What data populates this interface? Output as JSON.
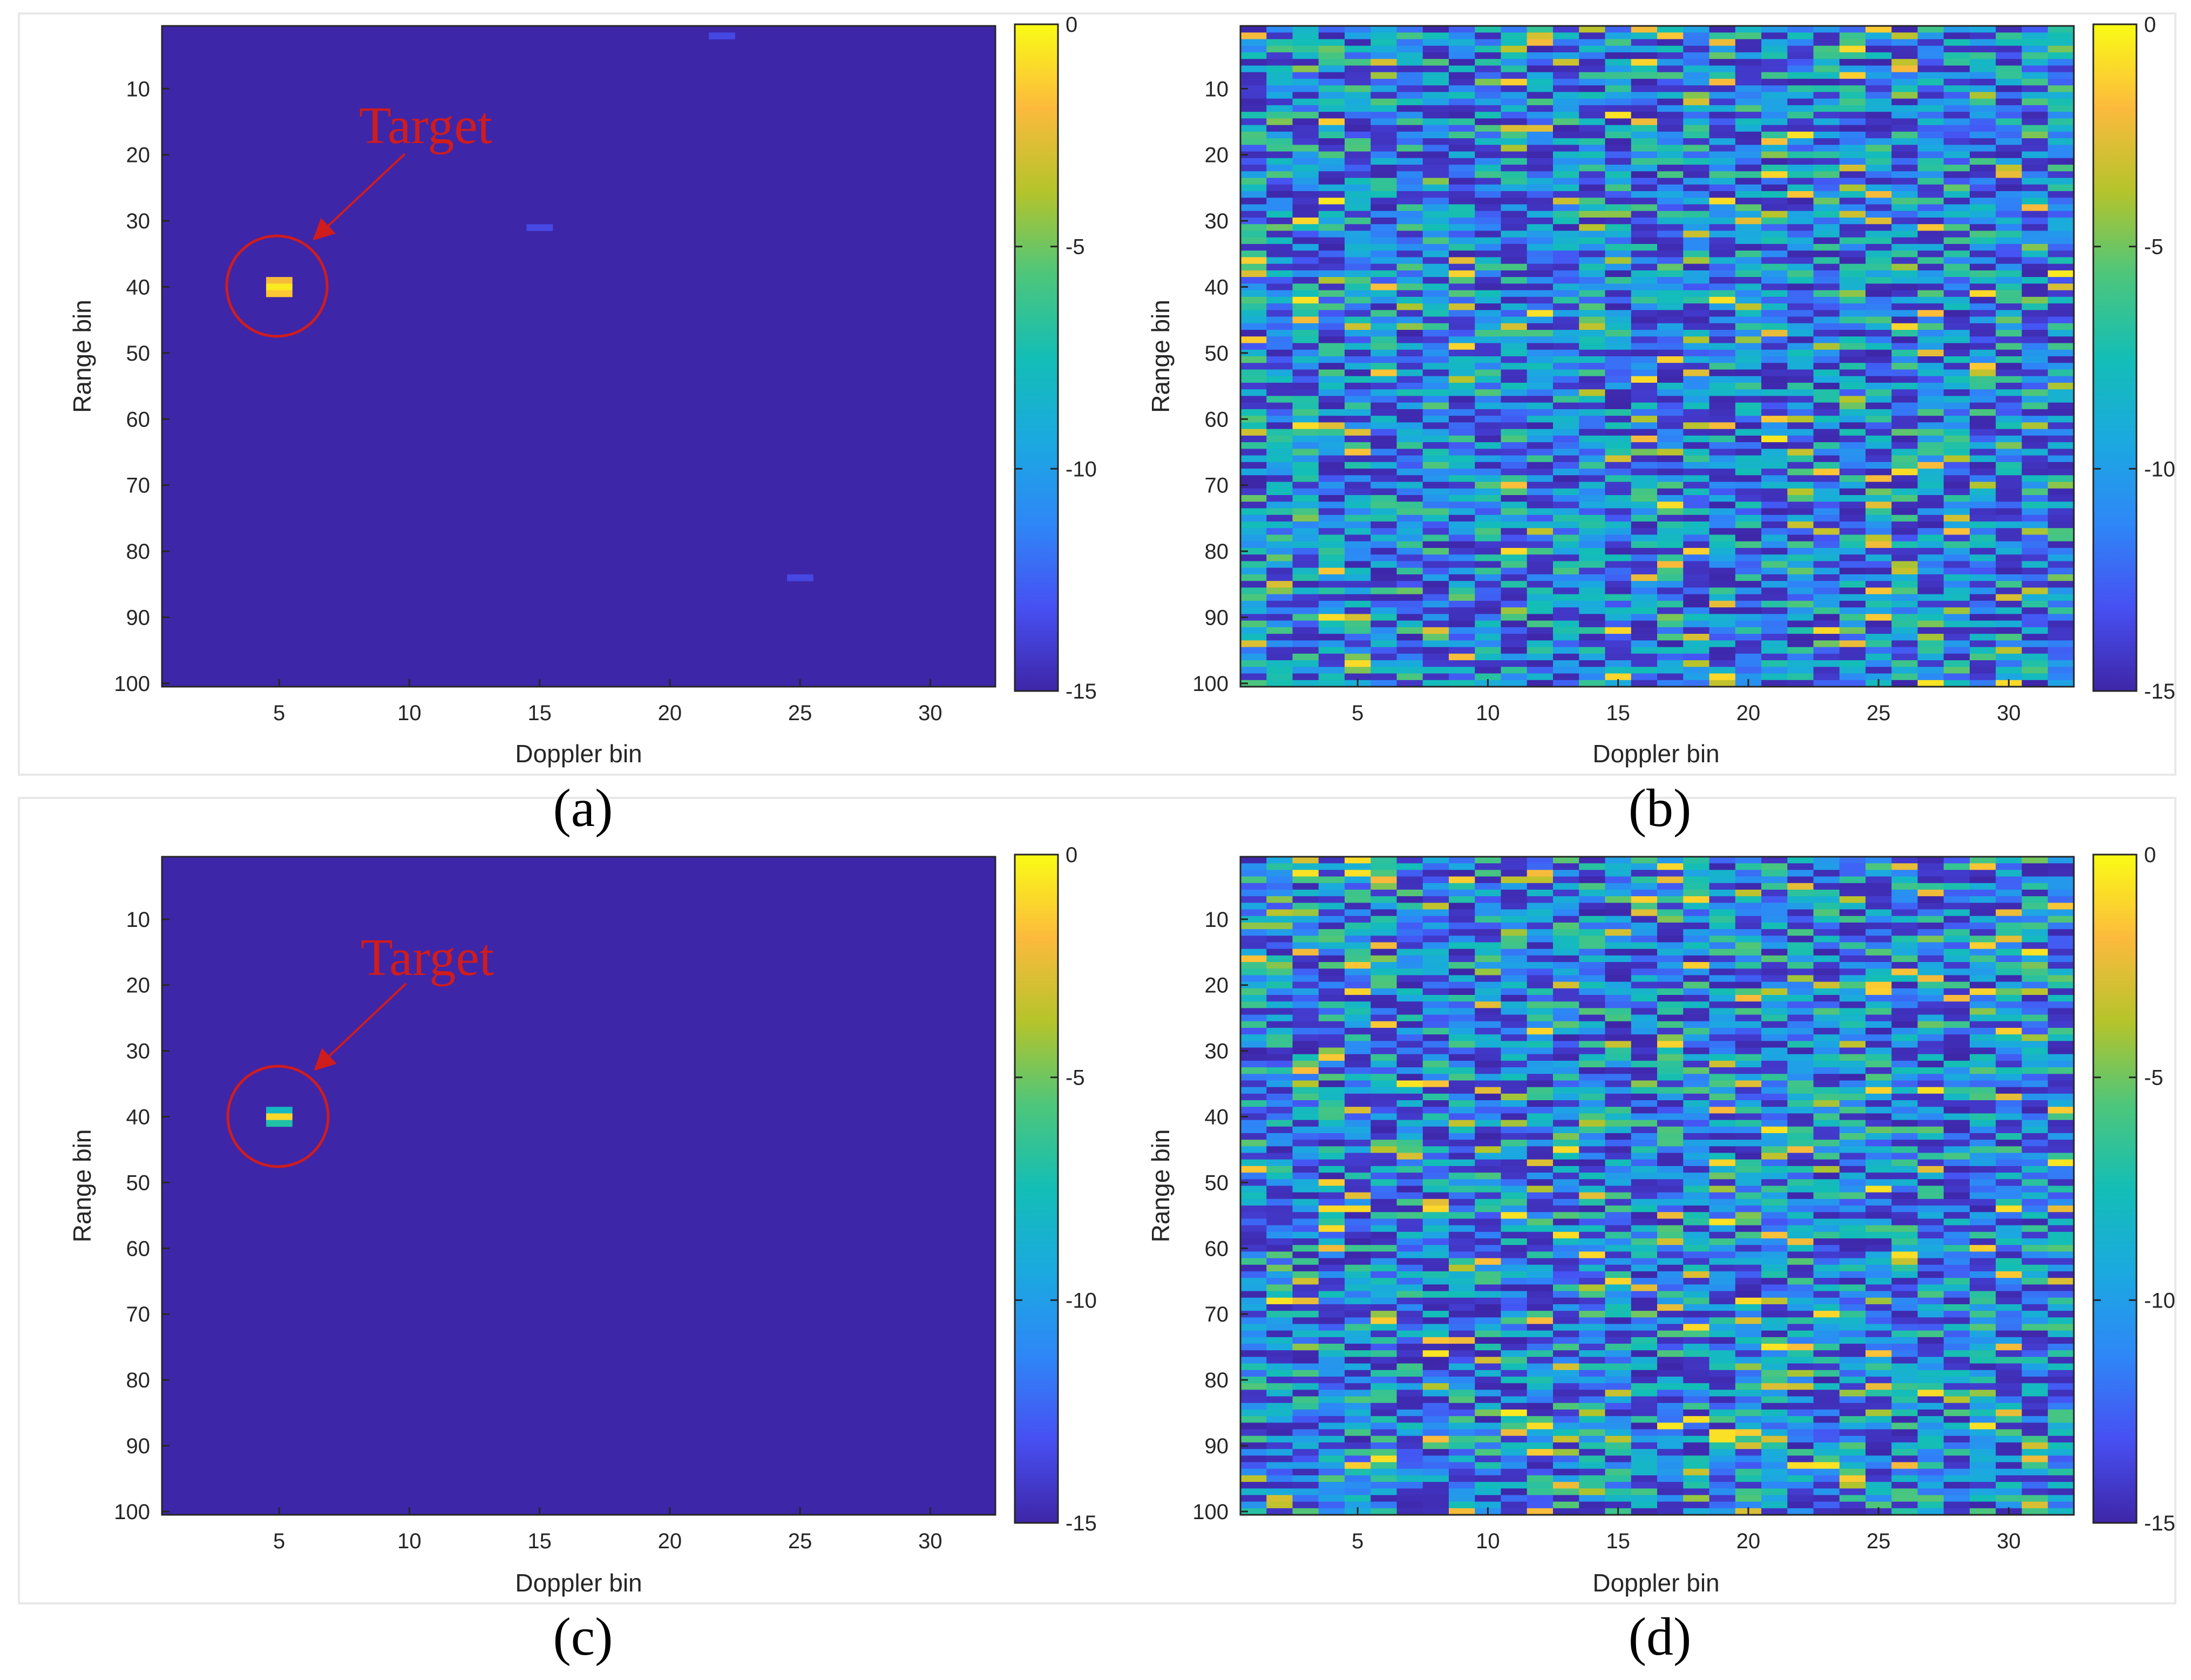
{
  "figure": {
    "colors": {
      "background_low": "#3b2b9c",
      "frame": "#e8e8e8",
      "axis": "#262626",
      "annotation": "#d01c1c"
    },
    "colormap_name": "parula"
  },
  "chart_data": [
    {
      "type": "heatmap",
      "panel": "(a)",
      "caption": "(a)",
      "xlabel": "Doppler bin",
      "ylabel": "Range bin",
      "xlim": [
        0.5,
        32.5
      ],
      "ylim": [
        0.5,
        100.5
      ],
      "xticks": [
        5,
        10,
        15,
        20,
        25,
        30
      ],
      "yticks": [
        10,
        20,
        30,
        40,
        50,
        60,
        70,
        80,
        90,
        100
      ],
      "colorbar": {
        "min": -15,
        "max": 0,
        "ticks": [
          0,
          -5,
          -10,
          -15
        ]
      },
      "pattern": "sparse",
      "background_value": -15,
      "cells": [
        {
          "doppler": 5,
          "range": 39,
          "value": -2
        },
        {
          "doppler": 5,
          "range": 40,
          "value": -0.5
        },
        {
          "doppler": 5,
          "range": 41,
          "value": -1.5
        },
        {
          "doppler": 22,
          "range": 2,
          "value": -13.5
        },
        {
          "doppler": 15,
          "range": 31,
          "value": -13.5
        },
        {
          "doppler": 25,
          "range": 84,
          "value": -13.5
        }
      ],
      "annotation": {
        "text": "Target",
        "doppler": 5,
        "range": 40
      }
    },
    {
      "type": "heatmap",
      "panel": "(b)",
      "caption": "(b)",
      "xlabel": "Doppler bin",
      "ylabel": "Range bin",
      "xlim": [
        0.5,
        32.5
      ],
      "ylim": [
        0.5,
        100.5
      ],
      "xticks": [
        5,
        10,
        15,
        20,
        25,
        30
      ],
      "yticks": [
        10,
        20,
        30,
        40,
        50,
        60,
        70,
        80,
        90,
        100
      ],
      "colorbar": {
        "min": -15,
        "max": 0,
        "ticks": [
          0,
          -5,
          -10,
          -15
        ]
      },
      "pattern": "noise",
      "seed": 7,
      "value_range": [
        -15,
        0
      ]
    },
    {
      "type": "heatmap",
      "panel": "(c)",
      "caption": "(c)",
      "xlabel": "Doppler bin",
      "ylabel": "Range bin",
      "xlim": [
        0.5,
        32.5
      ],
      "ylim": [
        0.5,
        100.5
      ],
      "xticks": [
        5,
        10,
        15,
        20,
        25,
        30
      ],
      "yticks": [
        10,
        20,
        30,
        40,
        50,
        60,
        70,
        80,
        90,
        100
      ],
      "colorbar": {
        "min": -15,
        "max": 0,
        "ticks": [
          0,
          -5,
          -10,
          -15
        ]
      },
      "pattern": "sparse",
      "background_value": -15,
      "cells": [
        {
          "doppler": 5,
          "range": 39,
          "value": -8
        },
        {
          "doppler": 5,
          "range": 40,
          "value": -1
        },
        {
          "doppler": 5,
          "range": 41,
          "value": -7
        }
      ],
      "annotation": {
        "text": "Target",
        "doppler": 5,
        "range": 40
      }
    },
    {
      "type": "heatmap",
      "panel": "(d)",
      "caption": "(d)",
      "xlabel": "Doppler bin",
      "ylabel": "Range bin",
      "xlim": [
        0.5,
        32.5
      ],
      "ylim": [
        0.5,
        100.5
      ],
      "xticks": [
        5,
        10,
        15,
        20,
        25,
        30
      ],
      "yticks": [
        10,
        20,
        30,
        40,
        50,
        60,
        70,
        80,
        90,
        100
      ],
      "colorbar": {
        "min": -15,
        "max": 0,
        "ticks": [
          0,
          -5,
          -10,
          -15
        ]
      },
      "pattern": "noise",
      "seed": 23,
      "value_range": [
        -15,
        0
      ]
    }
  ]
}
